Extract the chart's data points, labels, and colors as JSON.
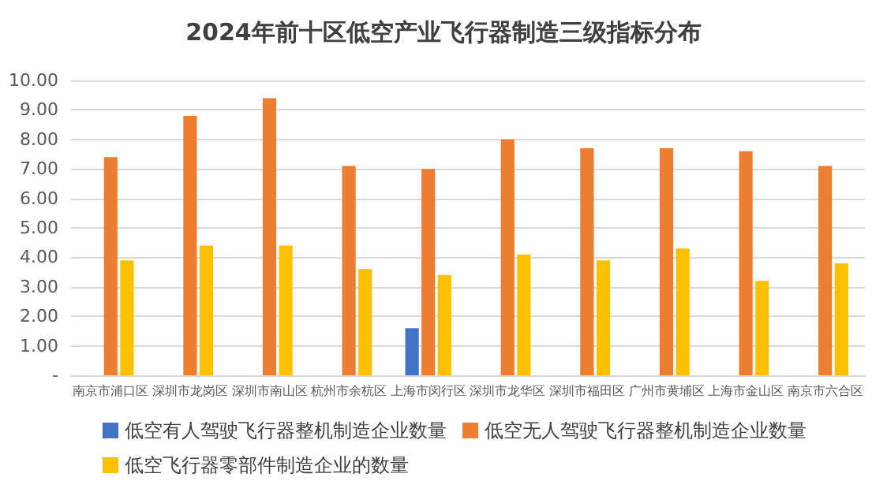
{
  "chart_data": {
    "type": "bar",
    "title": "2024年前十区低空产业飞行器制造三级指标分布",
    "categories": [
      "南京市浦口区",
      "深圳市龙岗区",
      "深圳市南山区",
      "杭州市余杭区",
      "上海市闵行区",
      "深圳市龙华区",
      "深圳市福田区",
      "广州市黄埔区",
      "上海市金山区",
      "南京市六合区"
    ],
    "series": [
      {
        "name": "低空有人驾驶飞行器整机制造企业数量",
        "color": "#4472c4",
        "values": [
          null,
          null,
          null,
          null,
          1.6,
          null,
          null,
          null,
          null,
          null
        ]
      },
      {
        "name": "低空无人驾驶飞行器整机制造企业数量",
        "color": "#ed7d31",
        "values": [
          7.4,
          8.8,
          9.4,
          7.1,
          7.0,
          8.0,
          7.7,
          7.7,
          7.6,
          7.1
        ]
      },
      {
        "name": "低空飞行器零部件制造企业的数量",
        "color": "#ffc000",
        "values": [
          3.9,
          4.4,
          4.4,
          3.6,
          3.4,
          4.1,
          3.9,
          4.3,
          3.2,
          3.8
        ]
      }
    ],
    "ylim": [
      0,
      10
    ],
    "yticks": [
      {
        "value": 0,
        "label": "-"
      },
      {
        "value": 1,
        "label": "1.00"
      },
      {
        "value": 2,
        "label": "2.00"
      },
      {
        "value": 3,
        "label": "3.00"
      },
      {
        "value": 4,
        "label": "4.00"
      },
      {
        "value": 5,
        "label": "5.00"
      },
      {
        "value": 6,
        "label": "6.00"
      },
      {
        "value": 7,
        "label": "7.00"
      },
      {
        "value": 8,
        "label": "8.00"
      },
      {
        "value": 9,
        "label": "9.00"
      },
      {
        "value": 10,
        "label": "10.00"
      }
    ],
    "grid": "y",
    "legend": "bottom"
  }
}
